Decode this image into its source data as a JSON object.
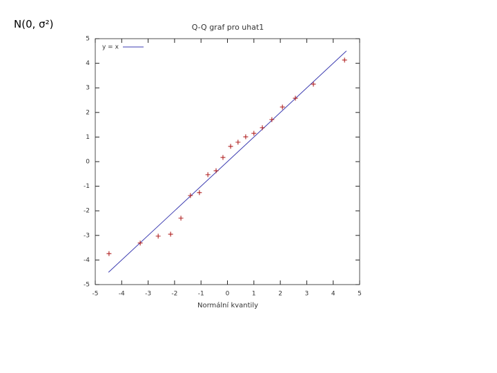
{
  "heading": "N(0, σ²)",
  "chart_data": {
    "type": "scatter",
    "title": "Q-Q graf pro uhat1",
    "x_label": "Normální kvantily",
    "xlim": [
      -5,
      5
    ],
    "ylim": [
      -5,
      5
    ],
    "xticks": [
      -5,
      -4,
      -3,
      -2,
      -1,
      0,
      1,
      2,
      3,
      4,
      5
    ],
    "yticks": [
      -5,
      -4,
      -3,
      -2,
      -1,
      0,
      1,
      2,
      3,
      4,
      5
    ],
    "grid": false,
    "legend": "top-left",
    "series": [
      {
        "name": "y = x",
        "type": "line",
        "color": "#3a3ab0",
        "x": [
          -4.5,
          4.5
        ],
        "values": [
          -4.5,
          4.5
        ]
      },
      {
        "type": "scatter",
        "color": "#b02020",
        "x": [
          -4.48,
          -3.3,
          -2.62,
          -2.15,
          -1.76,
          -1.4,
          -1.06,
          -0.74,
          -0.43,
          -0.17,
          0.12,
          0.4,
          0.69,
          1.0,
          1.32,
          1.68,
          2.08,
          2.57,
          3.25,
          4.43
        ],
        "values": [
          -3.74,
          -3.31,
          -3.03,
          -2.95,
          -2.3,
          -1.38,
          -1.26,
          -0.53,
          -0.37,
          0.17,
          0.62,
          0.79,
          1.01,
          1.15,
          1.38,
          1.71,
          2.22,
          2.58,
          3.15,
          4.13
        ]
      }
    ]
  }
}
